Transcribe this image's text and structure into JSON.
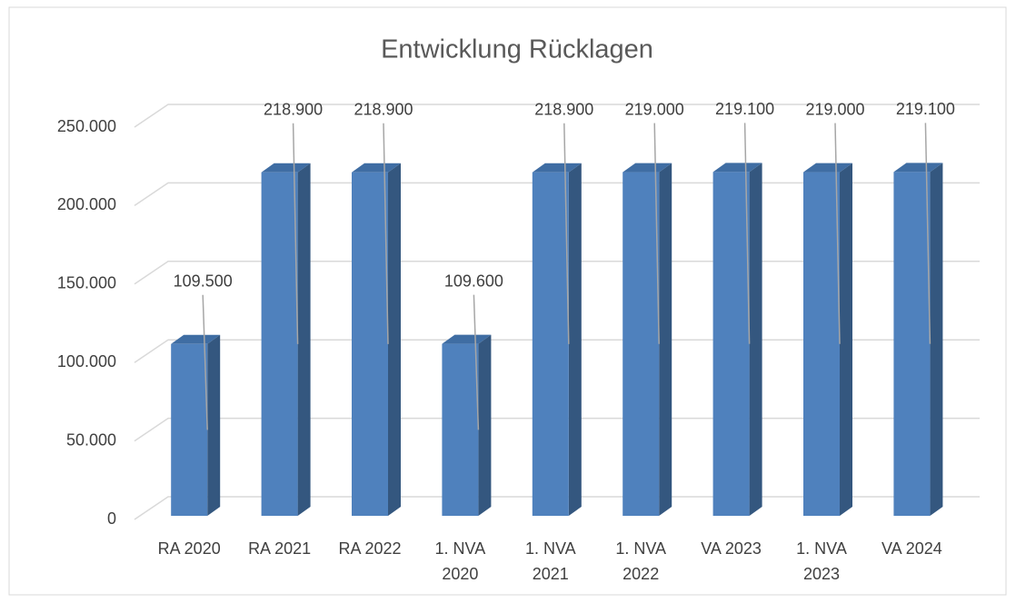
{
  "chart_data": {
    "type": "bar3d",
    "title": "Entwicklung Rücklagen",
    "categories": [
      "RA 2020",
      "RA 2021",
      "RA 2022",
      "1. NVA 2020",
      "1. NVA 2021",
      "1. NVA 2022",
      "VA 2023",
      "1. NVA 2023",
      "VA 2024"
    ],
    "values": [
      109500,
      218900,
      218900,
      109600,
      218900,
      219000,
      219100,
      219000,
      219100
    ],
    "value_labels": [
      "109.500",
      "218.900",
      "218.900",
      "109.600",
      "218.900",
      "219.000",
      "219.100",
      "219.000",
      "219.100"
    ],
    "color": "#4f81bd",
    "ylim": [
      0,
      250000
    ],
    "yticks": [
      0,
      {
        "value": 50000,
        "label": "50.000"
      },
      {
        "value": 100000,
        "label": "100.000"
      },
      {
        "value": 150000,
        "label": "150.000"
      },
      {
        "value": 200000,
        "label": "200.000"
      },
      {
        "value": 250000,
        "label": "250.000"
      }
    ],
    "grid": true
  }
}
